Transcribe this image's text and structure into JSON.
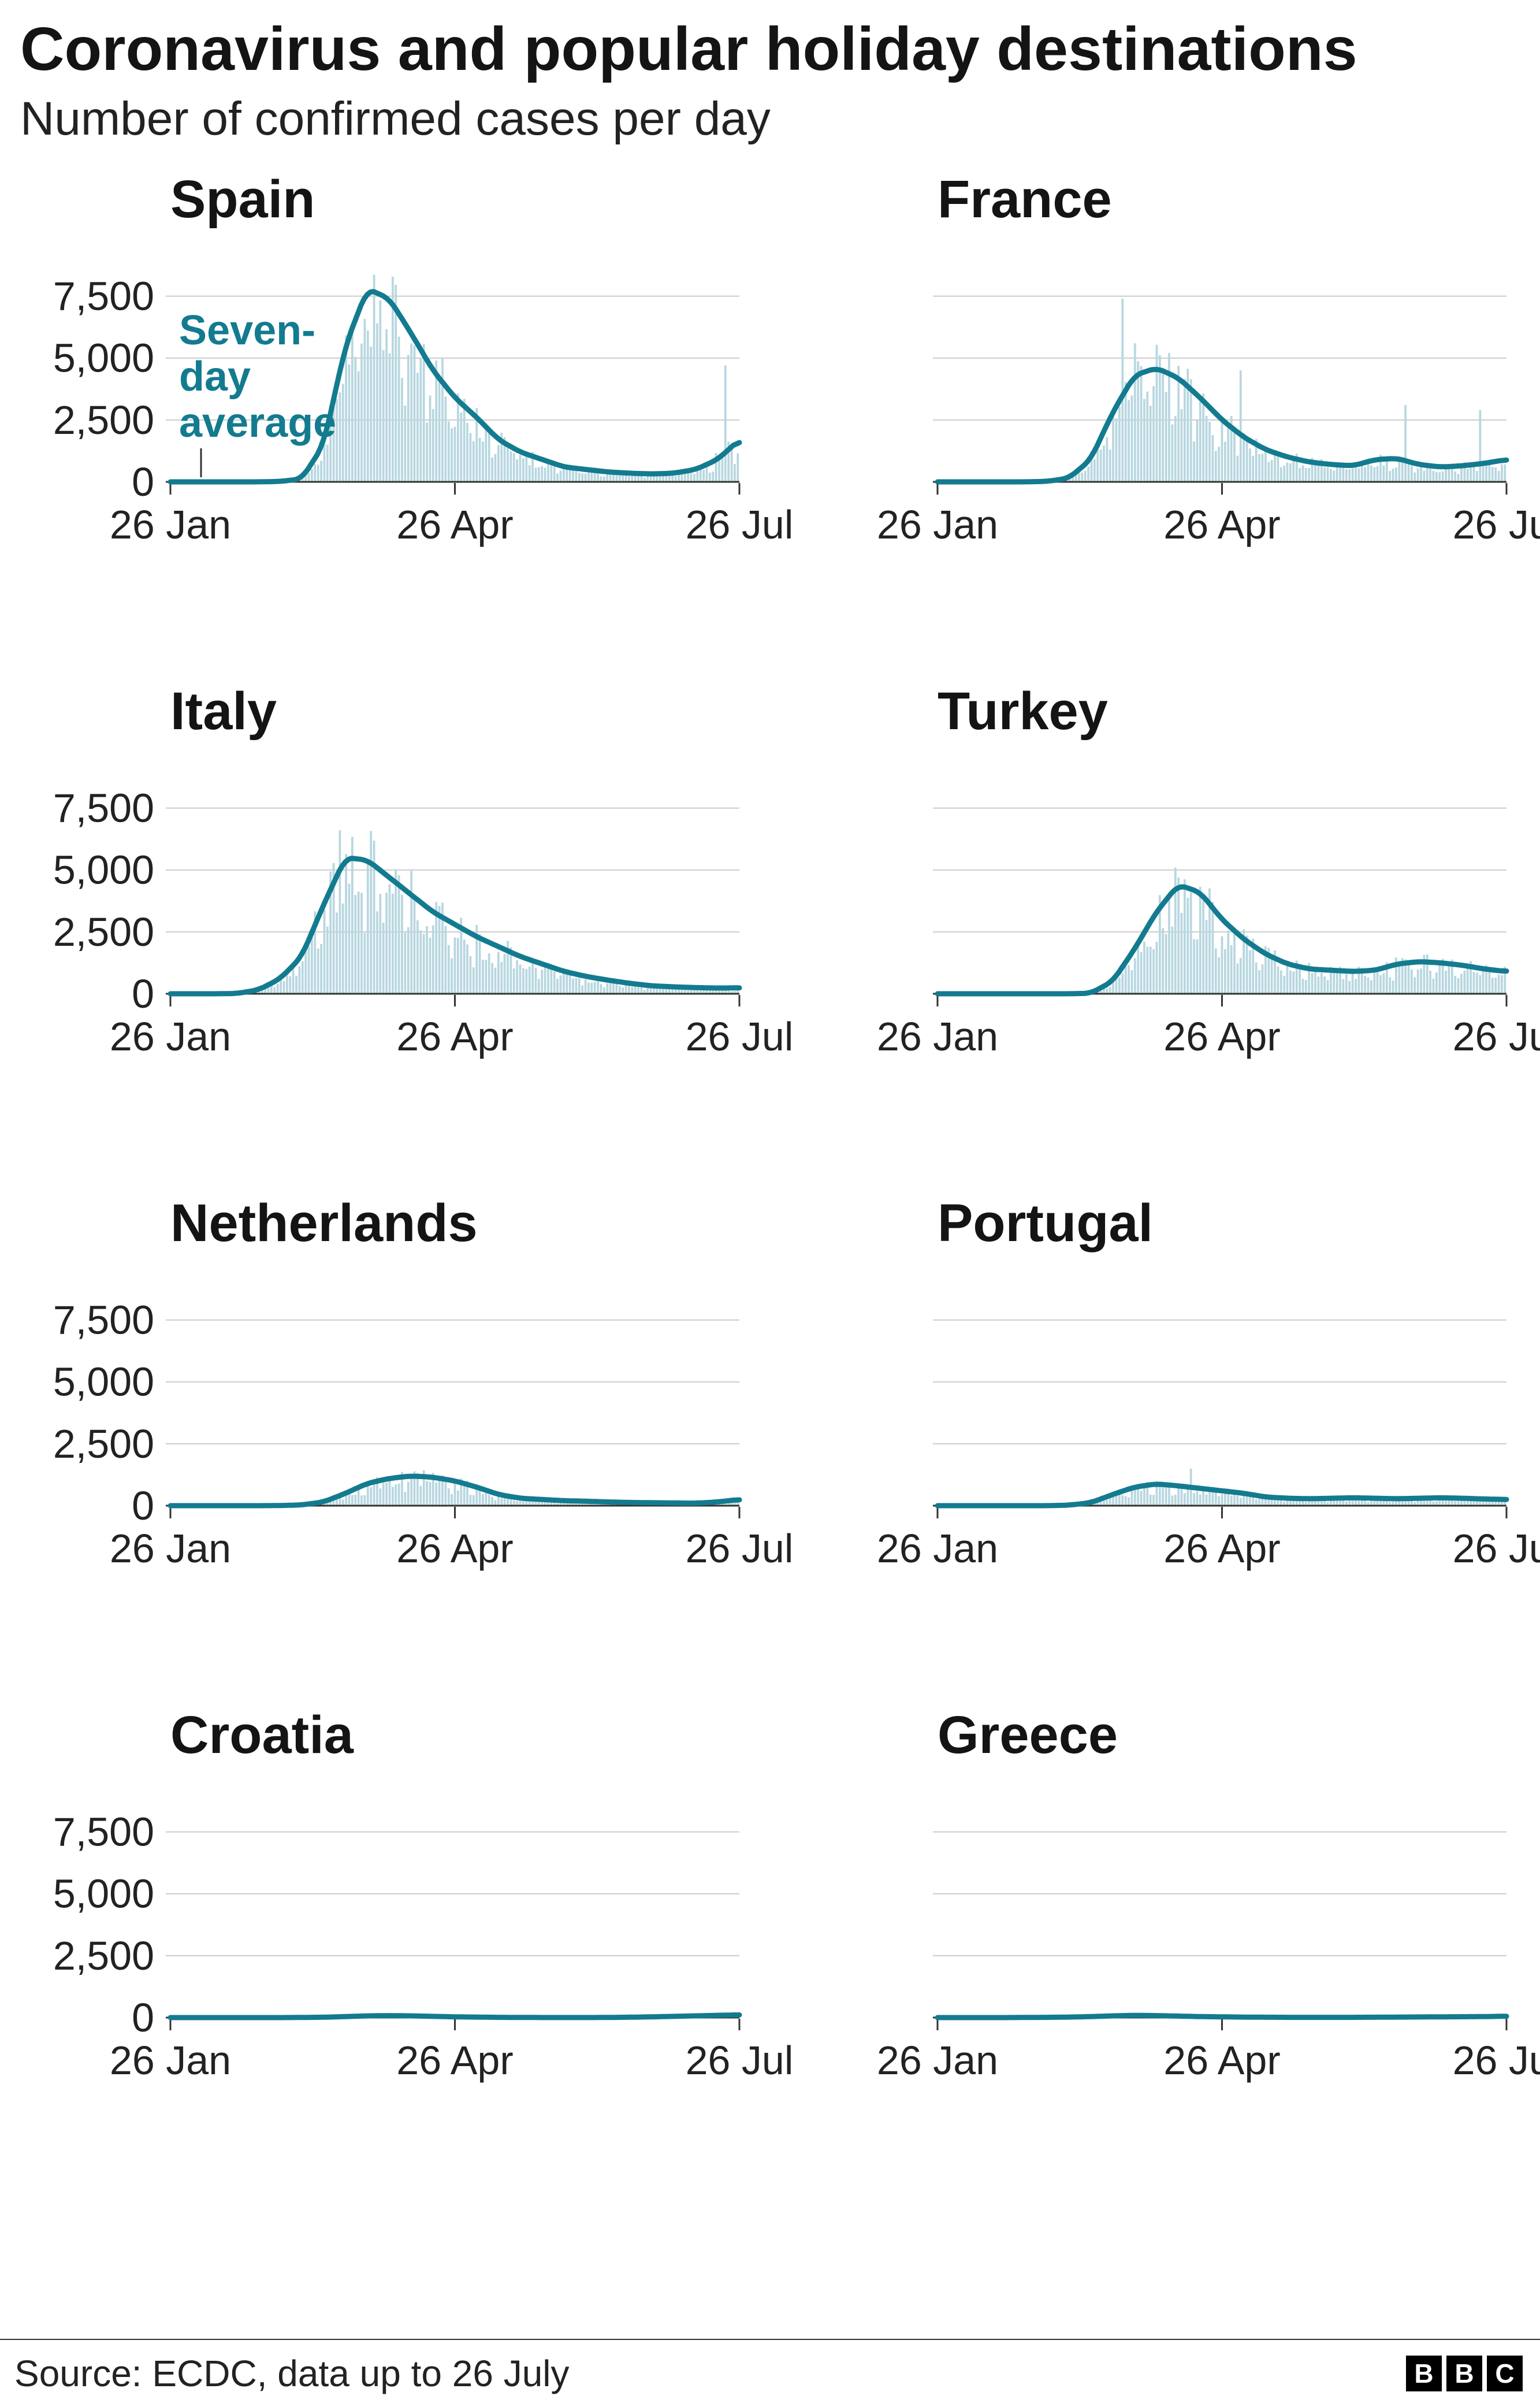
{
  "header": {
    "title": "Coronavirus and popular holiday destinations",
    "subtitle": "Number of confirmed cases per day"
  },
  "annotation": {
    "lines": [
      "Seven-",
      "day",
      "average"
    ]
  },
  "axes": {
    "y_tick_values": [
      0,
      2500,
      5000,
      7500
    ],
    "y_tick_labels": [
      "0",
      "2,500",
      "5,000",
      "7,500"
    ],
    "x_tick_days": [
      0,
      91,
      182
    ],
    "x_tick_labels": [
      "26 Jan",
      "26 Apr",
      "26 Jul"
    ],
    "days_total": 182,
    "y_plot_max": 9800
  },
  "colors": {
    "bar": "#b8d7e0",
    "line": "#137b8f",
    "grid": "#cccccc",
    "axis": "#333333",
    "text": "#222222"
  },
  "chart_data": {
    "type": "bar+line",
    "description": "Daily confirmed COVID-19 cases (light bars) with seven-day average (teal line), 26 Jan to 26 Jul, shared y-scale 0-7,500+",
    "panels": [
      {
        "country": "Spain",
        "show_y_labels": true,
        "has_annotation": true,
        "noise_seed": 11,
        "avg_weekly": [
          0,
          0,
          0,
          0,
          0,
          15,
          120,
          1500,
          5500,
          7800,
          7400,
          6000,
          4500,
          3400,
          2600,
          1700,
          1200,
          900,
          600,
          500,
          400,
          350,
          320,
          350,
          500,
          900,
          1700
        ],
        "spikes": {
          "85": 4900,
          "178": 4700
        }
      },
      {
        "country": "France",
        "show_y_labels": false,
        "has_annotation": false,
        "noise_seed": 23,
        "avg_weekly": [
          0,
          0,
          0,
          0,
          0,
          20,
          150,
          900,
          2800,
          4300,
          4600,
          4200,
          3400,
          2500,
          1800,
          1300,
          1000,
          800,
          700,
          650,
          900,
          950,
          700,
          600,
          650,
          750,
          900
        ],
        "spikes": {
          "59": 7400,
          "63": 5600,
          "97": 4500,
          "150": 3100,
          "174": 2900
        }
      },
      {
        "country": "Italy",
        "show_y_labels": true,
        "has_annotation": false,
        "noise_seed": 37,
        "avg_weekly": [
          0,
          0,
          0,
          10,
          150,
          600,
          1500,
          3600,
          5500,
          5400,
          4700,
          4000,
          3300,
          2800,
          2300,
          1900,
          1500,
          1200,
          900,
          700,
          550,
          420,
          320,
          280,
          250,
          230,
          240
        ],
        "spikes": {
          "54": 6600
        }
      },
      {
        "country": "Turkey",
        "show_y_labels": false,
        "has_annotation": false,
        "noise_seed": 41,
        "avg_weekly": [
          0,
          0,
          0,
          0,
          0,
          0,
          0,
          20,
          500,
          1800,
          3300,
          4400,
          4100,
          3000,
          2200,
          1600,
          1200,
          1000,
          950,
          900,
          950,
          1200,
          1300,
          1250,
          1150,
          1000,
          900
        ],
        "spikes": {
          "76": 5100
        }
      },
      {
        "country": "Netherlands",
        "show_y_labels": true,
        "has_annotation": false,
        "noise_seed": 53,
        "avg_weekly": [
          0,
          0,
          0,
          0,
          0,
          5,
          30,
          150,
          500,
          900,
          1100,
          1200,
          1150,
          1000,
          750,
          450,
          300,
          250,
          200,
          180,
          150,
          130,
          120,
          110,
          100,
          150,
          250
        ],
        "spikes": {}
      },
      {
        "country": "Portugal",
        "show_y_labels": false,
        "has_annotation": false,
        "noise_seed": 61,
        "avg_weekly": [
          0,
          0,
          0,
          0,
          0,
          0,
          20,
          120,
          450,
          750,
          880,
          800,
          700,
          600,
          500,
          350,
          300,
          280,
          300,
          320,
          300,
          280,
          300,
          320,
          300,
          270,
          250
        ],
        "spikes": {
          "81": 1500
        }
      },
      {
        "country": "Croatia",
        "show_y_labels": true,
        "has_annotation": false,
        "noise_seed": 71,
        "avg_weekly": [
          0,
          0,
          0,
          0,
          0,
          0,
          5,
          15,
          40,
          70,
          80,
          70,
          50,
          30,
          20,
          10,
          5,
          3,
          2,
          2,
          5,
          15,
          30,
          50,
          70,
          90,
          110
        ],
        "spikes": {}
      },
      {
        "country": "Greece",
        "show_y_labels": false,
        "has_annotation": false,
        "noise_seed": 83,
        "avg_weekly": [
          0,
          0,
          0,
          0,
          5,
          10,
          20,
          40,
          70,
          90,
          80,
          60,
          40,
          30,
          20,
          15,
          10,
          10,
          10,
          10,
          15,
          20,
          25,
          30,
          35,
          40,
          55
        ],
        "spikes": {}
      }
    ]
  },
  "footer": {
    "source": "Source: ECDC, data up to 26 July",
    "logo_letters": [
      "B",
      "B",
      "C"
    ]
  }
}
